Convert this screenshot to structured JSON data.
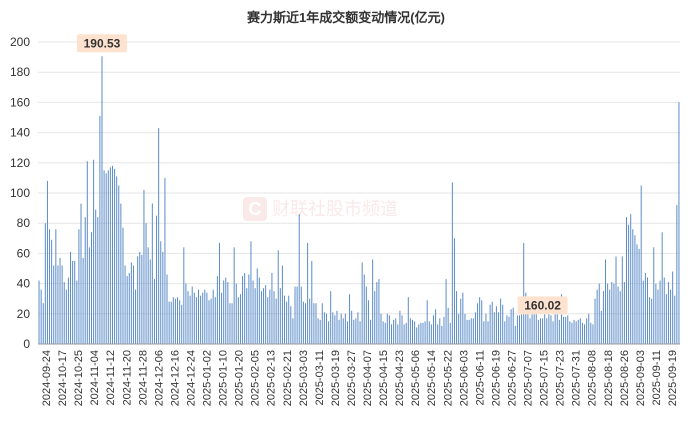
{
  "chart_data": {
    "type": "bar",
    "title": "赛力斯近1年成交额变动情况(亿元)",
    "ylim": [
      0,
      200
    ],
    "yticks": [
      0,
      20,
      40,
      60,
      80,
      100,
      120,
      140,
      160,
      180,
      200
    ],
    "xtick_labels": [
      "2024-09-24",
      "2024-10-17",
      "2024-10-25",
      "2024-11-04",
      "2024-11-12",
      "2024-11-20",
      "2024-11-28",
      "2024-12-06",
      "2024-12-16",
      "2024-12-24",
      "2025-01-02",
      "2025-01-10",
      "2025-01-20",
      "2025-02-05",
      "2025-02-13",
      "2025-02-21",
      "2025-03-03",
      "2025-03-11",
      "2025-03-19",
      "2025-03-27",
      "2025-04-07",
      "2025-04-15",
      "2025-04-23",
      "2025-05-06",
      "2025-05-14",
      "2025-05-22",
      "2025-06-03",
      "2025-06-11",
      "2025-06-19",
      "2025-06-27",
      "2025-07-07",
      "2025-07-15",
      "2025-07-23",
      "2025-07-31",
      "2025-08-08",
      "2025-08-18",
      "2025-08-26",
      "2025-09-03",
      "2025-09-11",
      "2025-09-19"
    ],
    "annotations": [
      {
        "label": "190.53",
        "index": 30
      },
      {
        "label": "160.02",
        "index": 240
      }
    ],
    "grid": "horizontal",
    "bar_color": "#5b8cc8",
    "values": [
      42,
      36,
      27,
      80,
      108,
      76,
      69,
      52,
      76,
      52,
      57,
      52,
      41,
      36,
      44,
      61,
      55,
      55,
      42,
      76,
      93,
      57,
      84,
      121,
      64,
      74,
      122,
      89,
      84,
      151,
      190.53,
      115,
      113,
      115,
      117,
      118,
      116,
      111,
      105,
      93,
      77,
      52,
      45,
      47,
      54,
      52,
      36,
      58,
      61,
      59,
      102,
      80,
      64,
      56,
      93,
      43,
      85,
      143,
      68,
      61,
      110,
      46,
      28,
      28,
      31,
      30,
      31,
      29,
      26,
      64,
      40,
      35,
      32,
      38,
      34,
      31,
      36,
      32,
      34,
      36,
      34,
      29,
      30,
      36,
      31,
      45,
      67,
      34,
      42,
      44,
      41,
      27,
      27,
      64,
      40,
      31,
      33,
      45,
      47,
      37,
      46,
      68,
      42,
      37,
      50,
      44,
      35,
      37,
      39,
      31,
      36,
      47,
      35,
      30,
      62,
      37,
      52,
      32,
      28,
      32,
      25,
      17,
      38,
      38,
      86,
      38,
      28,
      27,
      67,
      30,
      55,
      27,
      27,
      17,
      16,
      27,
      21,
      20,
      15,
      35,
      21,
      19,
      22,
      16,
      20,
      17,
      20,
      15,
      33,
      22,
      16,
      17,
      21,
      15,
      54,
      46,
      38,
      29,
      16,
      56,
      35,
      41,
      43,
      20,
      15,
      14,
      20,
      19,
      13,
      16,
      17,
      13,
      22,
      19,
      13,
      14,
      31,
      17,
      16,
      15,
      11,
      13,
      14,
      14,
      15,
      29,
      15,
      13,
      19,
      23,
      13,
      17,
      12,
      18,
      43,
      24,
      14,
      107,
      70,
      35,
      20,
      30,
      34,
      20,
      16,
      16,
      17,
      17,
      21,
      27,
      31,
      29,
      15,
      20,
      15,
      26,
      28,
      21,
      25,
      21,
      30,
      26,
      15,
      19,
      18,
      23,
      24,
      12,
      19,
      19,
      22,
      67,
      34,
      25,
      17,
      29,
      31,
      21,
      16,
      17,
      17,
      20,
      17,
      21,
      19,
      15,
      22,
      21,
      16,
      33,
      18,
      18,
      19,
      15,
      14,
      16,
      15,
      16,
      17,
      14,
      13,
      17,
      20,
      14,
      13,
      30,
      36,
      40,
      22,
      35,
      56,
      40,
      36,
      41,
      40,
      58,
      38,
      35,
      58,
      41,
      84,
      79,
      86,
      76,
      72,
      66,
      63,
      105,
      42,
      47,
      44,
      31,
      30,
      64,
      40,
      36,
      42,
      74,
      44,
      33,
      41,
      36,
      48,
      32,
      92,
      160.02
    ]
  }
}
